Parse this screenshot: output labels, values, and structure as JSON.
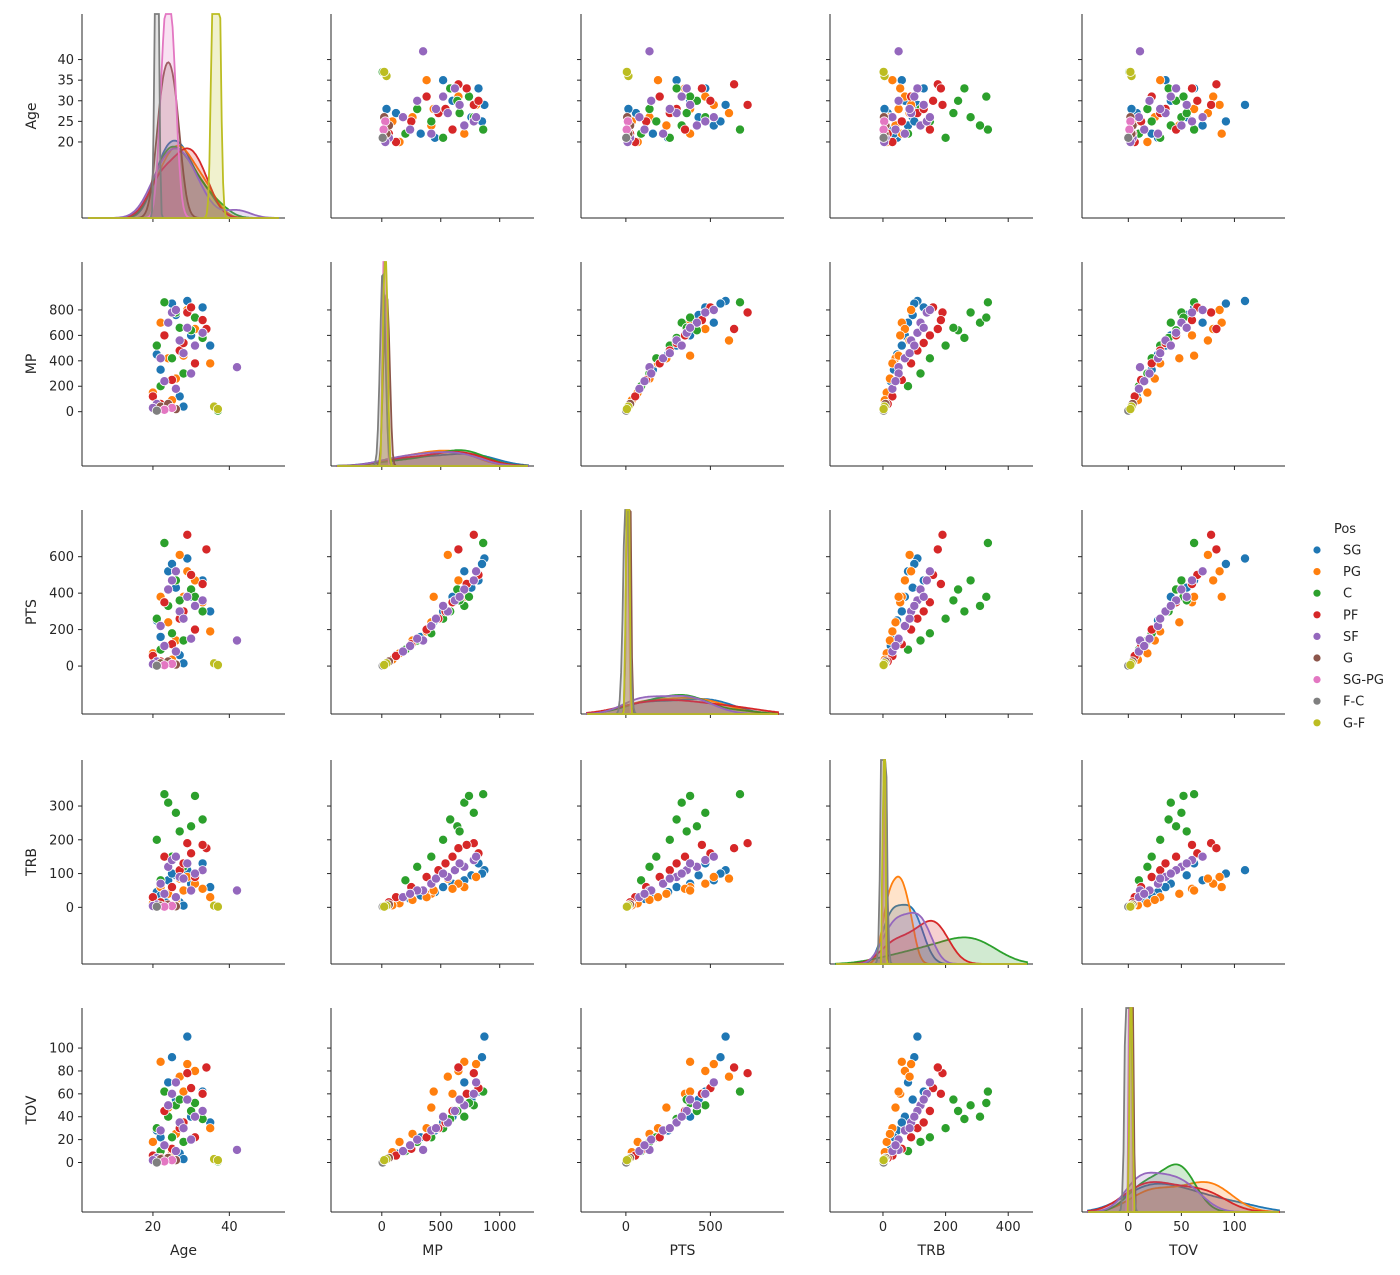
{
  "chart_data": {
    "type": "scatter",
    "subtype": "pairplot",
    "hue": "Pos",
    "variables": [
      "Age",
      "MP",
      "PTS",
      "TRB",
      "TOV"
    ],
    "grid": false,
    "legend": {
      "title": "Pos",
      "placement": "right",
      "entries": [
        {
          "label": "SG",
          "color": "#1f77b4"
        },
        {
          "label": "PG",
          "color": "#ff7f0e"
        },
        {
          "label": "C",
          "color": "#2ca02c"
        },
        {
          "label": "PF",
          "color": "#d62728"
        },
        {
          "label": "SF",
          "color": "#9467bd"
        },
        {
          "label": "G",
          "color": "#8c564b"
        },
        {
          "label": "SG-PG",
          "color": "#e377c2"
        },
        {
          "label": "F-C",
          "color": "#7f7f7f"
        },
        {
          "label": "G-F",
          "color": "#bcbd22"
        }
      ]
    },
    "axes": {
      "Age": {
        "range": [
          3,
          53
        ],
        "ticks": [
          20,
          25,
          30,
          35,
          40
        ],
        "x_ticks": [
          20,
          40
        ]
      },
      "MP": {
        "range": [
          -380,
          1240
        ],
        "ticks": [
          0,
          200,
          400,
          600,
          800
        ],
        "x_ticks": [
          0,
          500,
          1000
        ]
      },
      "PTS": {
        "range": [
          -230,
          900
        ],
        "ticks": [
          0,
          200,
          400,
          600
        ],
        "x_ticks": [
          0,
          500
        ]
      },
      "TRB": {
        "range": [
          -150,
          460
        ],
        "ticks": [
          0,
          100,
          200,
          300
        ],
        "x_ticks": [
          0,
          200,
          400
        ]
      },
      "TOV": {
        "range": [
          -38,
          142
        ],
        "ticks": [
          0,
          20,
          40,
          60,
          80,
          100
        ],
        "x_ticks": [
          0,
          50,
          100
        ]
      }
    },
    "diag_kde_ylim_top": {
      "Age": 0.205,
      "MP": 0.0185,
      "PTS": 0.0205,
      "TRB": 0.0255,
      "TOV": 0.074
    },
    "points": [
      {
        "pos": "SG",
        "Age": 26,
        "MP": 760,
        "PTS": 430,
        "TRB": 95,
        "TOV": 55
      },
      {
        "pos": "SG",
        "Age": 29,
        "MP": 870,
        "PTS": 590,
        "TRB": 110,
        "TOV": 110
      },
      {
        "pos": "SG",
        "Age": 24,
        "MP": 700,
        "PTS": 520,
        "TRB": 80,
        "TOV": 70
      },
      {
        "pos": "SG",
        "Age": 33,
        "MP": 820,
        "PTS": 470,
        "TRB": 130,
        "TOV": 62
      },
      {
        "pos": "SG",
        "Age": 21,
        "MP": 450,
        "PTS": 250,
        "TRB": 45,
        "TOV": 28
      },
      {
        "pos": "SG",
        "Age": 30,
        "MP": 600,
        "PTS": 380,
        "TRB": 70,
        "TOV": 40
      },
      {
        "pos": "SG",
        "Age": 23,
        "MP": 240,
        "PTS": 110,
        "TRB": 25,
        "TOV": 15
      },
      {
        "pos": "SG",
        "Age": 27,
        "MP": 120,
        "PTS": 60,
        "TRB": 15,
        "TOV": 8
      },
      {
        "pos": "SG",
        "Age": 35,
        "MP": 520,
        "PTS": 300,
        "TRB": 60,
        "TOV": 35
      },
      {
        "pos": "SG",
        "Age": 25,
        "MP": 850,
        "PTS": 560,
        "TRB": 100,
        "TOV": 92
      },
      {
        "pos": "SG",
        "Age": 22,
        "MP": 330,
        "PTS": 160,
        "TRB": 35,
        "TOV": 22
      },
      {
        "pos": "SG",
        "Age": 28,
        "MP": 40,
        "PTS": 15,
        "TRB": 5,
        "TOV": 3
      },
      {
        "pos": "PG",
        "Age": 22,
        "MP": 700,
        "PTS": 380,
        "TRB": 60,
        "TOV": 88
      },
      {
        "pos": "PG",
        "Age": 29,
        "MP": 800,
        "PTS": 520,
        "TRB": 90,
        "TOV": 86
      },
      {
        "pos": "PG",
        "Age": 31,
        "MP": 650,
        "PTS": 470,
        "TRB": 70,
        "TOV": 80
      },
      {
        "pos": "PG",
        "Age": 24,
        "MP": 420,
        "PTS": 240,
        "TRB": 40,
        "TOV": 48
      },
      {
        "pos": "PG",
        "Age": 35,
        "MP": 380,
        "PTS": 190,
        "TRB": 30,
        "TOV": 30
      },
      {
        "pos": "PG",
        "Age": 27,
        "MP": 560,
        "PTS": 610,
        "TRB": 85,
        "TOV": 75
      },
      {
        "pos": "PG",
        "Age": 20,
        "MP": 150,
        "PTS": 70,
        "TRB": 12,
        "TOV": 18
      },
      {
        "pos": "PG",
        "Age": 26,
        "MP": 260,
        "PTS": 140,
        "TRB": 22,
        "TOV": 25
      },
      {
        "pos": "PG",
        "Age": 33,
        "MP": 600,
        "PTS": 350,
        "TRB": 55,
        "TOV": 60
      },
      {
        "pos": "PG",
        "Age": 25,
        "MP": 90,
        "PTS": 35,
        "TRB": 6,
        "TOV": 9
      },
      {
        "pos": "PG",
        "Age": 28,
        "MP": 440,
        "PTS": 380,
        "TRB": 50,
        "TOV": 62
      },
      {
        "pos": "C",
        "Age": 23,
        "MP": 860,
        "PTS": 675,
        "TRB": 335,
        "TOV": 62
      },
      {
        "pos": "C",
        "Age": 26,
        "MP": 780,
        "PTS": 470,
        "TRB": 280,
        "TOV": 50
      },
      {
        "pos": "C",
        "Age": 24,
        "MP": 700,
        "PTS": 330,
        "TRB": 310,
        "TOV": 40
      },
      {
        "pos": "C",
        "Age": 30,
        "MP": 640,
        "PTS": 420,
        "TRB": 240,
        "TOV": 45
      },
      {
        "pos": "C",
        "Age": 21,
        "MP": 520,
        "PTS": 260,
        "TRB": 200,
        "TOV": 30
      },
      {
        "pos": "C",
        "Age": 33,
        "MP": 580,
        "PTS": 300,
        "TRB": 260,
        "TOV": 38
      },
      {
        "pos": "C",
        "Age": 37,
        "MP": 8,
        "PTS": 2,
        "TRB": 2,
        "TOV": 1
      },
      {
        "pos": "C",
        "Age": 25,
        "MP": 420,
        "PTS": 180,
        "TRB": 150,
        "TOV": 22
      },
      {
        "pos": "C",
        "Age": 28,
        "MP": 300,
        "PTS": 140,
        "TRB": 120,
        "TOV": 18
      },
      {
        "pos": "C",
        "Age": 22,
        "MP": 200,
        "PTS": 90,
        "TRB": 80,
        "TOV": 10
      },
      {
        "pos": "C",
        "Age": 31,
        "MP": 740,
        "PTS": 380,
        "TRB": 330,
        "TOV": 52
      },
      {
        "pos": "C",
        "Age": 27,
        "MP": 660,
        "PTS": 360,
        "TRB": 225,
        "TOV": 55
      },
      {
        "pos": "PF",
        "Age": 29,
        "MP": 780,
        "PTS": 720,
        "TRB": 190,
        "TOV": 78
      },
      {
        "pos": "PF",
        "Age": 34,
        "MP": 650,
        "PTS": 640,
        "TRB": 175,
        "TOV": 83
      },
      {
        "pos": "PF",
        "Age": 23,
        "MP": 600,
        "PTS": 350,
        "TRB": 150,
        "TOV": 45
      },
      {
        "pos": "PF",
        "Age": 27,
        "MP": 480,
        "PTS": 260,
        "TRB": 110,
        "TOV": 30
      },
      {
        "pos": "PF",
        "Age": 31,
        "MP": 380,
        "PTS": 200,
        "TRB": 90,
        "TOV": 22
      },
      {
        "pos": "PF",
        "Age": 25,
        "MP": 250,
        "PTS": 120,
        "TRB": 60,
        "TOV": 12
      },
      {
        "pos": "PF",
        "Age": 20,
        "MP": 120,
        "PTS": 55,
        "TRB": 30,
        "TOV": 6
      },
      {
        "pos": "PF",
        "Age": 33,
        "MP": 720,
        "PTS": 450,
        "TRB": 185,
        "TOV": 60
      },
      {
        "pos": "PF",
        "Age": 28,
        "MP": 540,
        "PTS": 300,
        "TRB": 130,
        "TOV": 35
      },
      {
        "pos": "PF",
        "Age": 22,
        "MP": 60,
        "PTS": 25,
        "TRB": 15,
        "TOV": 4
      },
      {
        "pos": "PF",
        "Age": 30,
        "MP": 820,
        "PTS": 500,
        "TRB": 160,
        "TOV": 65
      },
      {
        "pos": "SF",
        "Age": 42,
        "MP": 350,
        "PTS": 140,
        "TRB": 50,
        "TOV": 11
      },
      {
        "pos": "SF",
        "Age": 24,
        "MP": 700,
        "PTS": 420,
        "TRB": 120,
        "TOV": 50
      },
      {
        "pos": "SF",
        "Age": 27,
        "MP": 560,
        "PTS": 300,
        "TRB": 90,
        "TOV": 35
      },
      {
        "pos": "SF",
        "Age": 22,
        "MP": 420,
        "PTS": 220,
        "TRB": 70,
        "TOV": 28
      },
      {
        "pos": "SF",
        "Age": 30,
        "MP": 300,
        "PTS": 150,
        "TRB": 50,
        "TOV": 20
      },
      {
        "pos": "SF",
        "Age": 26,
        "MP": 180,
        "PTS": 80,
        "TRB": 30,
        "TOV": 10
      },
      {
        "pos": "SF",
        "Age": 21,
        "MP": 60,
        "PTS": 25,
        "TRB": 8,
        "TOV": 4
      },
      {
        "pos": "SF",
        "Age": 33,
        "MP": 620,
        "PTS": 360,
        "TRB": 110,
        "TOV": 45
      },
      {
        "pos": "SF",
        "Age": 25,
        "MP": 780,
        "PTS": 470,
        "TRB": 140,
        "TOV": 60
      },
      {
        "pos": "SF",
        "Age": 28,
        "MP": 460,
        "PTS": 260,
        "TRB": 85,
        "TOV": 30
      },
      {
        "pos": "SF",
        "Age": 23,
        "MP": 240,
        "PTS": 110,
        "TRB": 40,
        "TOV": 15
      },
      {
        "pos": "SF",
        "Age": 29,
        "MP": 660,
        "PTS": 380,
        "TRB": 130,
        "TOV": 55
      },
      {
        "pos": "SF",
        "Age": 20,
        "MP": 30,
        "PTS": 10,
        "TRB": 4,
        "TOV": 2
      },
      {
        "pos": "SF",
        "Age": 31,
        "MP": 520,
        "PTS": 330,
        "TRB": 100,
        "TOV": 40
      },
      {
        "pos": "SF",
        "Age": 26,
        "MP": 800,
        "PTS": 520,
        "TRB": 150,
        "TOV": 70
      },
      {
        "pos": "G",
        "Age": 22,
        "MP": 40,
        "PTS": 15,
        "TRB": 5,
        "TOV": 3
      },
      {
        "pos": "G",
        "Age": 26,
        "MP": 20,
        "PTS": 8,
        "TRB": 3,
        "TOV": 2
      },
      {
        "pos": "G",
        "Age": 24,
        "MP": 60,
        "PTS": 25,
        "TRB": 8,
        "TOV": 4
      },
      {
        "pos": "SG-PG",
        "Age": 25,
        "MP": 30,
        "PTS": 12,
        "TRB": 4,
        "TOV": 2
      },
      {
        "pos": "SG-PG",
        "Age": 23,
        "MP": 15,
        "PTS": 5,
        "TRB": 2,
        "TOV": 1
      },
      {
        "pos": "F-C",
        "Age": 21,
        "MP": 8,
        "PTS": 2,
        "TRB": 2,
        "TOV": 0
      },
      {
        "pos": "G-F",
        "Age": 36,
        "MP": 40,
        "PTS": 15,
        "TRB": 5,
        "TOV": 3
      },
      {
        "pos": "G-F",
        "Age": 37,
        "MP": 20,
        "PTS": 6,
        "TRB": 2,
        "TOV": 2
      }
    ]
  }
}
